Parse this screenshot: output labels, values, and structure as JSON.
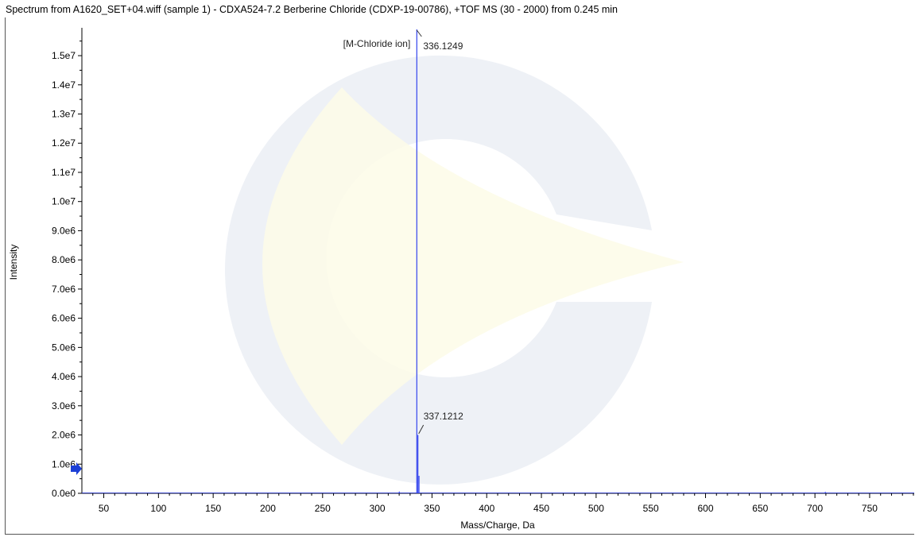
{
  "title": "Spectrum from A1620_SET+04.wiff (sample 1) - CDXA524-7.2 Berberine Chloride (CDXP-19-00786), +TOF MS (30 - 2000) from 0.245 min",
  "chart_data": {
    "type": "line",
    "xlabel": "Mass/Charge, Da",
    "ylabel": "Intensity",
    "xlim": [
      30,
      790
    ],
    "ylim": [
      0,
      15900000
    ],
    "x_ticks": [
      50,
      100,
      150,
      200,
      250,
      300,
      350,
      400,
      450,
      500,
      550,
      600,
      650,
      700,
      750
    ],
    "y_ticks": [
      {
        "value": 0,
        "label": "0.0e0"
      },
      {
        "value": 1000000,
        "label": "1.0e6"
      },
      {
        "value": 2000000,
        "label": "2.0e6"
      },
      {
        "value": 3000000,
        "label": "3.0e6"
      },
      {
        "value": 4000000,
        "label": "4.0e6"
      },
      {
        "value": 5000000,
        "label": "5.0e6"
      },
      {
        "value": 6000000,
        "label": "6.0e6"
      },
      {
        "value": 7000000,
        "label": "7.0e6"
      },
      {
        "value": 8000000,
        "label": "8.0e6"
      },
      {
        "value": 9000000,
        "label": "9.0e6"
      },
      {
        "value": 10000000,
        "label": "1.0e7"
      },
      {
        "value": 11000000,
        "label": "1.1e7"
      },
      {
        "value": 12000000,
        "label": "1.2e7"
      },
      {
        "value": 13000000,
        "label": "1.3e7"
      },
      {
        "value": 14000000,
        "label": "1.4e7"
      },
      {
        "value": 15000000,
        "label": "1.5e7"
      }
    ],
    "peaks": [
      {
        "mz": 320.1,
        "intensity": 60000
      },
      {
        "mz": 336.1249,
        "intensity": 15900000
      },
      {
        "mz": 337.1212,
        "intensity": 2000000
      },
      {
        "mz": 338.12,
        "intensity": 600000
      },
      {
        "mz": 709.5,
        "intensity": 50000
      }
    ],
    "annotations": [
      {
        "text": "336.1249",
        "mz": 336.1249
      },
      {
        "text": "[M-Chloride ion]",
        "mz": 336.1249
      },
      {
        "text": "337.1212",
        "mz": 337.1212
      }
    ],
    "line_color": "#3344ee",
    "grid": false
  }
}
